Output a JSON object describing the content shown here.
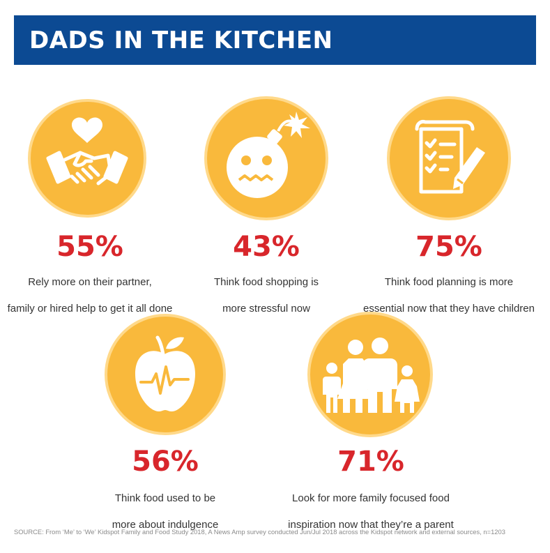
{
  "title": "DADS IN THE KITCHEN",
  "stats": [
    {
      "percent": "55%",
      "line1": "Rely more on their partner,",
      "line2": "family or hired help to get it all done",
      "icon": "handshake-heart-icon"
    },
    {
      "percent": "43%",
      "line1": "Think food shopping is",
      "line2": "more stressful now",
      "icon": "stressed-bomb-icon"
    },
    {
      "percent": "75%",
      "line1": "Think food planning is more",
      "line2": "essential now that they have children",
      "icon": "checklist-pencil-icon"
    },
    {
      "percent": "56%",
      "line1": "Think food used to be",
      "line2": "more about indulgence",
      "icon": "apple-heartbeat-icon"
    },
    {
      "percent": "71%",
      "line1": "Look for more family focused food",
      "line2": "inspiration now that they’re a parent",
      "icon": "family-icon"
    }
  ],
  "source": "SOURCE: From ‘Me’ to ‘We’ Kidspot Family and Food Study 2018, A News Amp survey conducted Jun/Jul 2018 across the Kidspot network and external sources, n=1203",
  "colors": {
    "banner": "#0c4a93",
    "circle": "#f9b93c",
    "percent": "#d8262b"
  }
}
